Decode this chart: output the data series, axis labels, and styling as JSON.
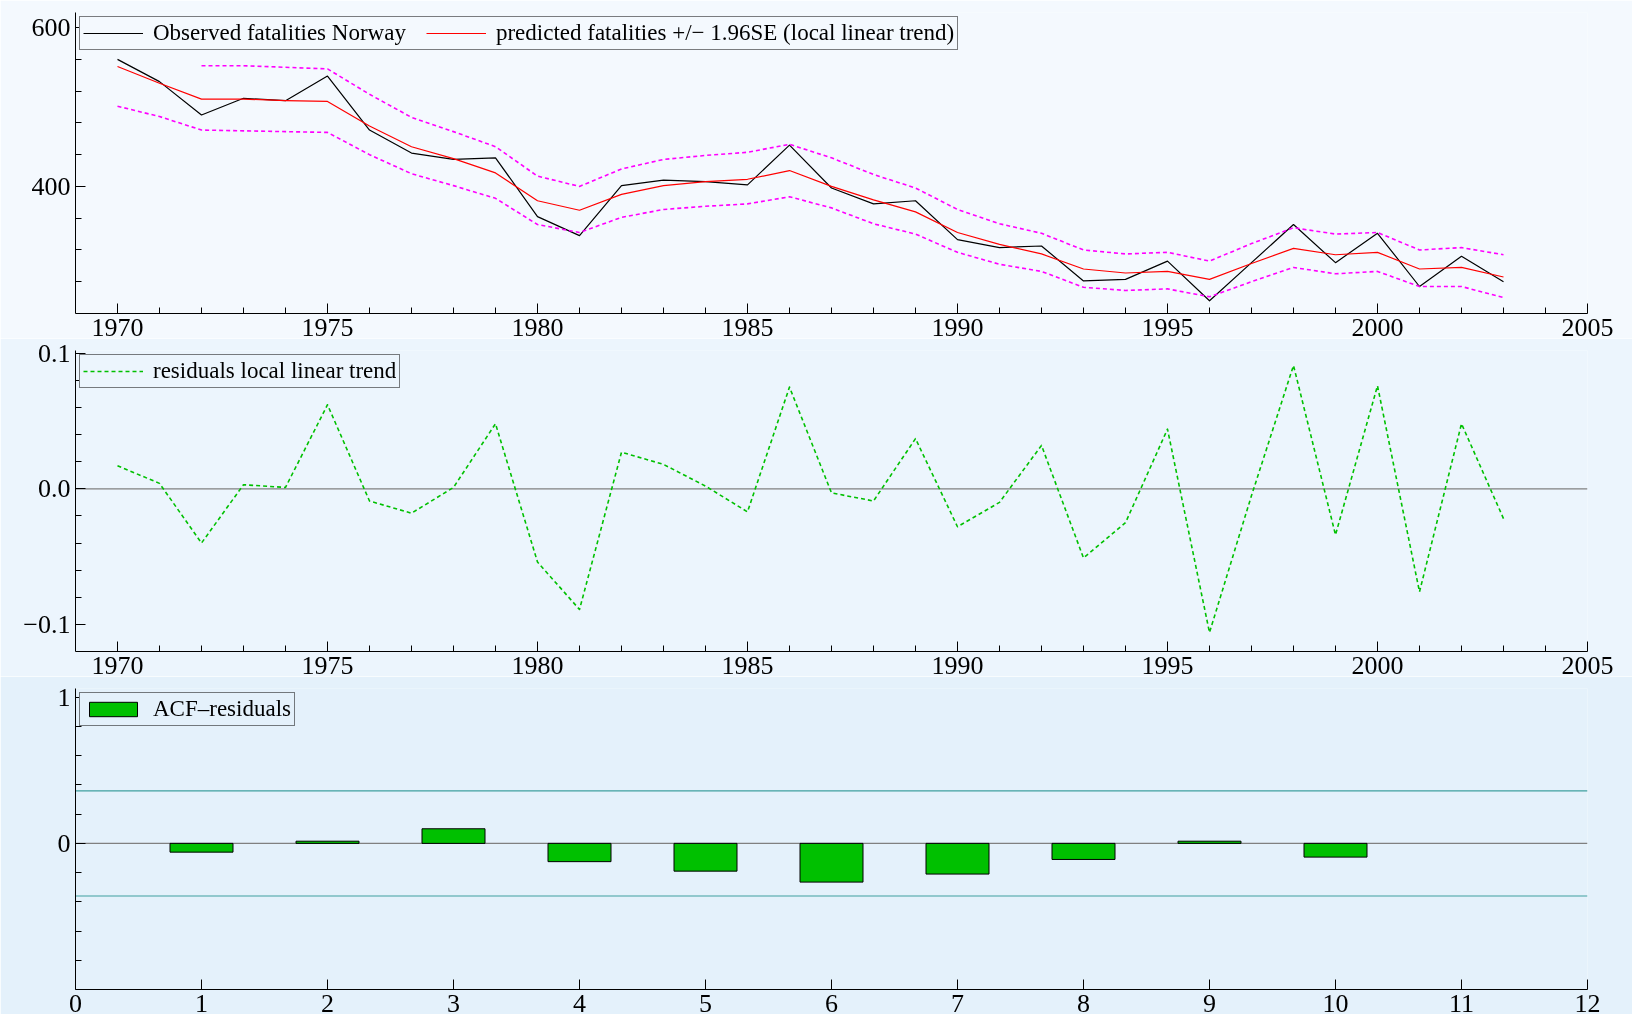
{
  "chart_data": [
    {
      "type": "line",
      "legend": "top left",
      "grid": false,
      "x": [
        1970,
        1971,
        1972,
        1973,
        1974,
        1975,
        1976,
        1977,
        1978,
        1979,
        1980,
        1981,
        1982,
        1983,
        1984,
        1985,
        1986,
        1987,
        1988,
        1989,
        1990,
        1991,
        1992,
        1993,
        1994,
        1995,
        1996,
        1997,
        1998,
        1999,
        2000,
        2001,
        2002,
        2003
      ],
      "series": [
        {
          "name": "Observed fatalities Norway",
          "color": "#000000",
          "line_style": "solid",
          "values": [
            560,
            532,
            490,
            511,
            508,
            539,
            471,
            442,
            434,
            436,
            362,
            338,
            401,
            408,
            406,
            402,
            452,
            398,
            378,
            382,
            333,
            323,
            325,
            281,
            283,
            306,
            256,
            304,
            352,
            304,
            341,
            274,
            312,
            280
          ]
        },
        {
          "name": "predicted fatalities +/− 1.96SE (local linear trend)",
          "color": "#ff0000",
          "line_style": "solid",
          "values": [
            551,
            530,
            510,
            510,
            508,
            507,
            476,
            450,
            435,
            417,
            382,
            370,
            390,
            401,
            406,
            409,
            420,
            400,
            383,
            368,
            342,
            327,
            315,
            296,
            291,
            293,
            283,
            303,
            322,
            314,
            317,
            296,
            298,
            286
          ]
        },
        {
          "color": "#ff00ff",
          "line_style": "dotted",
          "values": [
            null,
            null,
            552,
            552,
            550,
            548,
            516,
            487,
            469,
            450,
            413,
            400,
            422,
            434,
            439,
            443,
            453,
            436,
            415,
            398,
            371,
            353,
            341,
            320,
            315,
            317,
            306,
            328,
            348,
            340,
            342,
            320,
            323,
            314
          ]
        },
        {
          "color": "#ff00ff",
          "line_style": "dotted",
          "values": [
            501,
            488,
            471,
            470,
            469,
            468,
            440,
            416,
            401,
            385,
            352,
            342,
            361,
            371,
            375,
            378,
            387,
            373,
            353,
            340,
            317,
            302,
            293,
            273,
            269,
            271,
            261,
            280,
            298,
            290,
            293,
            274,
            274,
            260
          ]
        }
      ],
      "xlim": [
        1969,
        2005
      ],
      "ylim": [
        240,
        619
      ],
      "xticks": [
        1970,
        {
          "value": 1971,
          "label": null
        },
        {
          "value": 1972,
          "label": null
        },
        {
          "value": 1973,
          "label": null
        },
        {
          "value": 1974,
          "label": null
        },
        1975,
        {
          "value": 1976,
          "label": null
        },
        {
          "value": 1977,
          "label": null
        },
        {
          "value": 1978,
          "label": null
        },
        {
          "value": 1979,
          "label": null
        },
        1980,
        {
          "value": 1981,
          "label": null
        },
        {
          "value": 1982,
          "label": null
        },
        {
          "value": 1983,
          "label": null
        },
        {
          "value": 1984,
          "label": null
        },
        1985,
        {
          "value": 1986,
          "label": null
        },
        {
          "value": 1987,
          "label": null
        },
        {
          "value": 1988,
          "label": null
        },
        {
          "value": 1989,
          "label": null
        },
        1990,
        {
          "value": 1991,
          "label": null
        },
        {
          "value": 1992,
          "label": null
        },
        {
          "value": 1993,
          "label": null
        },
        {
          "value": 1994,
          "label": null
        },
        1995,
        {
          "value": 1996,
          "label": null
        },
        {
          "value": 1997,
          "label": null
        },
        {
          "value": 1998,
          "label": null
        },
        {
          "value": 1999,
          "label": null
        },
        2000,
        {
          "value": 2001,
          "label": null
        },
        {
          "value": 2002,
          "label": null
        },
        {
          "value": 2003,
          "label": null
        },
        {
          "value": 2004,
          "label": null
        },
        2005
      ],
      "yticks": [
        {
          "value": 280,
          "label": null
        },
        {
          "value": 320,
          "label": null
        },
        {
          "value": 360,
          "label": null
        },
        400,
        {
          "value": 440,
          "label": null
        },
        {
          "value": 480,
          "label": null
        },
        {
          "value": 520,
          "label": null
        },
        {
          "value": 560,
          "label": null
        },
        600
      ]
    },
    {
      "type": "line",
      "legend": "top left",
      "grid": false,
      "x": [
        1970,
        1971,
        1972,
        1973,
        1974,
        1975,
        1976,
        1977,
        1978,
        1979,
        1980,
        1981,
        1982,
        1983,
        1984,
        1985,
        1986,
        1987,
        1988,
        1989,
        1990,
        1991,
        1992,
        1993,
        1994,
        1995,
        1996,
        1997,
        1998,
        1999,
        2000,
        2001,
        2002,
        2003
      ],
      "series": [
        {
          "name": "residuals local linear trend",
          "color": "#00c000",
          "line_style": "dotted",
          "values": [
            0.017,
            0.004,
            -0.04,
            0.003,
            0.001,
            0.062,
            -0.009,
            -0.018,
            0.001,
            0.048,
            -0.054,
            -0.089,
            0.027,
            0.018,
            0.002,
            -0.017,
            0.075,
            -0.003,
            -0.009,
            0.037,
            -0.028,
            -0.01,
            0.032,
            -0.051,
            -0.025,
            0.044,
            -0.106,
            -0.005,
            0.091,
            -0.034,
            0.076,
            -0.076,
            0.048,
            -0.022
          ]
        }
      ],
      "ref_lines": [
        {
          "axis": "y",
          "value": 0,
          "color": "#808080"
        }
      ],
      "xlim": [
        1969,
        2005
      ],
      "ylim": [
        -0.12,
        0.102
      ],
      "xticks": [
        1970,
        {
          "value": 1971,
          "label": null
        },
        {
          "value": 1972,
          "label": null
        },
        {
          "value": 1973,
          "label": null
        },
        {
          "value": 1974,
          "label": null
        },
        1975,
        {
          "value": 1976,
          "label": null
        },
        {
          "value": 1977,
          "label": null
        },
        {
          "value": 1978,
          "label": null
        },
        {
          "value": 1979,
          "label": null
        },
        1980,
        {
          "value": 1981,
          "label": null
        },
        {
          "value": 1982,
          "label": null
        },
        {
          "value": 1983,
          "label": null
        },
        {
          "value": 1984,
          "label": null
        },
        1985,
        {
          "value": 1986,
          "label": null
        },
        {
          "value": 1987,
          "label": null
        },
        {
          "value": 1988,
          "label": null
        },
        {
          "value": 1989,
          "label": null
        },
        1990,
        {
          "value": 1991,
          "label": null
        },
        {
          "value": 1992,
          "label": null
        },
        {
          "value": 1993,
          "label": null
        },
        {
          "value": 1994,
          "label": null
        },
        1995,
        {
          "value": 1996,
          "label": null
        },
        {
          "value": 1997,
          "label": null
        },
        {
          "value": 1998,
          "label": null
        },
        {
          "value": 1999,
          "label": null
        },
        2000,
        {
          "value": 2001,
          "label": null
        },
        {
          "value": 2002,
          "label": null
        },
        {
          "value": 2003,
          "label": null
        },
        {
          "value": 2004,
          "label": null
        },
        2005
      ],
      "yticks": [
        {
          "value": -0.1,
          "label": "−0.1"
        },
        {
          "value": -0.08,
          "label": null
        },
        {
          "value": -0.06,
          "label": null
        },
        {
          "value": -0.04,
          "label": null
        },
        {
          "value": -0.02,
          "label": null
        },
        {
          "value": 0,
          "label": "0.0"
        },
        {
          "value": 0.02,
          "label": null
        },
        {
          "value": 0.04,
          "label": null
        },
        {
          "value": 0.06,
          "label": null
        },
        {
          "value": 0.08,
          "label": null
        },
        0.1
      ]
    },
    {
      "type": "bar",
      "legend": "top left",
      "grid": false,
      "x": [
        1,
        2,
        3,
        4,
        5,
        6,
        7,
        8,
        9,
        10
      ],
      "series": [
        {
          "name": "ACF–residuals",
          "color": "#00c000",
          "values": [
            -0.06,
            0.015,
            0.1,
            -0.125,
            -0.19,
            -0.265,
            -0.21,
            -0.11,
            0.015,
            -0.094
          ]
        }
      ],
      "ref_lines": [
        {
          "axis": "y",
          "value": 0,
          "color": "#808080"
        },
        {
          "axis": "y",
          "value": 0.36,
          "color": "#3f9f9f"
        },
        {
          "axis": "y",
          "value": -0.36,
          "color": "#3f9f9f"
        }
      ],
      "xlim": [
        0,
        12
      ],
      "ylim": [
        -1,
        1.06
      ],
      "xticks": [
        0,
        1,
        2,
        3,
        4,
        5,
        6,
        7,
        8,
        9,
        10,
        11,
        12
      ],
      "yticks": [
        {
          "value": -0.8,
          "label": null
        },
        {
          "value": -0.6,
          "label": null
        },
        {
          "value": -0.4,
          "label": null
        },
        {
          "value": -0.2,
          "label": null
        },
        0,
        {
          "value": 0.2,
          "label": null
        },
        {
          "value": 0.4,
          "label": null
        },
        {
          "value": 0.6,
          "label": null
        },
        {
          "value": 0.8,
          "label": null
        },
        1
      ]
    }
  ]
}
